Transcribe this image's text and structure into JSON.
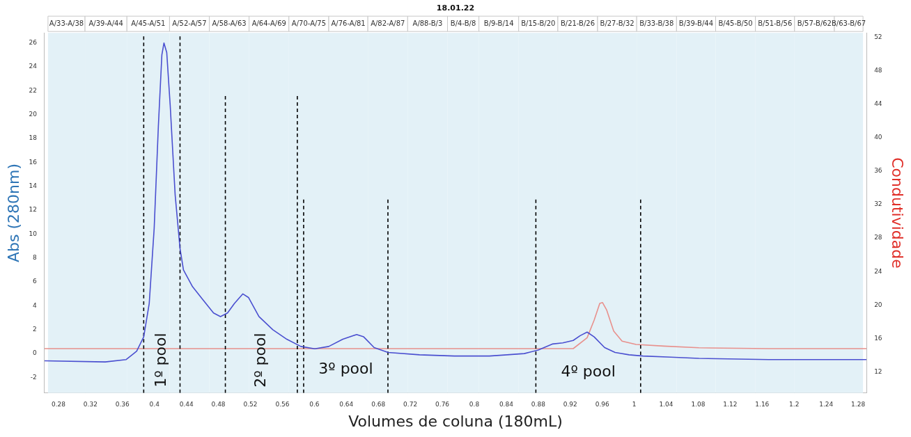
{
  "chart_data": {
    "type": "line",
    "title": "18.01.22",
    "xlabel": "Volumes de coluna (180mL)",
    "ylabel": "Abs (280nm)",
    "y2label": "Condutividade",
    "xlim": [
      0.2625,
      1.2905
    ],
    "xticks": [
      0.28,
      0.32,
      0.36,
      0.4,
      0.44,
      0.48,
      0.52,
      0.56,
      0.6,
      0.64,
      0.68,
      0.72,
      0.76,
      0.8,
      0.84,
      0.88,
      0.92,
      0.96,
      1,
      1.04,
      1.08,
      1.12,
      1.16,
      1.2,
      1.24,
      1.28
    ],
    "ylim": [
      -3.3,
      26.85
    ],
    "yticks": [
      -2,
      0,
      2,
      4,
      6,
      8,
      10,
      12,
      14,
      16,
      18,
      20,
      22,
      24,
      26
    ],
    "y2lim": [
      9.5,
      52.5
    ],
    "y2ticks": [
      12,
      16,
      20,
      24,
      28,
      32,
      36,
      40,
      44,
      48,
      52
    ],
    "grid": false,
    "legend": false,
    "marker": "none",
    "series": [
      {
        "color": "#e8908c",
        "axis": "y2",
        "x": [
          0.2625,
          0.8625,
          0.9237,
          0.9411,
          0.9499,
          0.9569,
          0.9604,
          0.9656,
          0.9743,
          0.9848,
          1.0023,
          1.0372,
          1.0809,
          1.1682,
          1.2905
        ],
        "values": [
          14.8,
          14.8,
          14.8,
          16.1,
          18.2,
          20.2,
          20.3,
          19.4,
          16.9,
          15.7,
          15.3,
          15.1,
          14.9,
          14.8,
          14.8
        ]
      },
      {
        "color": "#4a4fd0",
        "x": [
          0.2625,
          0.3385,
          0.3647,
          0.3778,
          0.3866,
          0.3935,
          0.3997,
          0.4049,
          0.4093,
          0.4119,
          0.4154,
          0.4197,
          0.4259,
          0.432,
          0.4363,
          0.4477,
          0.4608,
          0.4739,
          0.4826,
          0.4914,
          0.5001,
          0.5106,
          0.5176,
          0.5307,
          0.5481,
          0.5656,
          0.5831,
          0.6005,
          0.618,
          0.6355,
          0.6529,
          0.6617,
          0.6748,
          0.6922,
          0.7315,
          0.7752,
          0.8189,
          0.8625,
          0.88,
          0.8975,
          0.9106,
          0.9237,
          0.9324,
          0.9411,
          0.9499,
          0.963,
          0.9761,
          0.9935,
          1.011,
          1.0459,
          1.0809,
          1.1682,
          1.2555,
          1.2905
        ],
        "values": [
          -0.6,
          -0.7,
          -0.5,
          0.2,
          1.4,
          4.2,
          10.5,
          19,
          25,
          26,
          25.2,
          20.8,
          13.3,
          8.8,
          7,
          5.6,
          4.5,
          3.4,
          3.1,
          3.4,
          4.2,
          5,
          4.7,
          3.1,
          2,
          1.2,
          0.6,
          0.4,
          0.6,
          1.2,
          1.6,
          1.4,
          0.5,
          0.1,
          -0.1,
          -0.2,
          -0.2,
          0,
          0.3,
          0.8,
          0.9,
          1.1,
          1.5,
          1.8,
          1.4,
          0.5,
          0.1,
          -0.1,
          -0.2,
          -0.3,
          -0.4,
          -0.5,
          -0.5,
          -0.5
        ]
      },
      {
        "type": "line",
        "color": "#000000",
        "line_style": "dashed",
        "x": [
          0.3866,
          0.3866
        ],
        "values": [
          -3.3,
          26.56
        ]
      },
      {
        "type": "line",
        "color": "#000000",
        "line_style": "dashed",
        "x": [
          0.432,
          0.432
        ],
        "values": [
          -3.3,
          26.56
        ]
      },
      {
        "type": "line",
        "color": "#000000",
        "line_style": "dashed",
        "x": [
          0.4887,
          0.4887
        ],
        "values": [
          -3.3,
          21.56
        ]
      },
      {
        "type": "line",
        "color": "#000000",
        "line_style": "dashed",
        "x": [
          0.5787,
          0.5787
        ],
        "values": [
          -3.3,
          21.56
        ]
      },
      {
        "type": "line",
        "color": "#000000",
        "line_style": "dashed",
        "x": [
          0.5866,
          0.5866
        ],
        "values": [
          -3.3,
          12.9
        ]
      },
      {
        "type": "line",
        "color": "#000000",
        "line_style": "dashed",
        "x": [
          0.692,
          0.692
        ],
        "values": [
          -3.3,
          12.9
        ]
      },
      {
        "type": "line",
        "color": "#000000",
        "line_style": "dashed",
        "x": [
          0.877,
          0.877
        ],
        "values": [
          -3.3,
          12.9
        ]
      },
      {
        "type": "line",
        "color": "#000000",
        "line_style": "dashed",
        "x": [
          1.008,
          1.008
        ],
        "values": [
          -3.3,
          12.9
        ]
      }
    ],
    "bands": [
      {
        "axis": "x",
        "from": 0.2669,
        "to": 0.3132,
        "label": "A/33-A/38",
        "color": "#e3f1f7"
      },
      {
        "axis": "x",
        "from": 0.3132,
        "to": 0.3656,
        "label": "A/39-A/44",
        "color": "#e3f1f7"
      },
      {
        "axis": "x",
        "from": 0.3656,
        "to": 0.4189,
        "label": "A/45-A/51",
        "color": "#e3f1f7"
      },
      {
        "axis": "x",
        "from": 0.4189,
        "to": 0.4686,
        "label": "A/52-A/57",
        "color": "#e3f1f7"
      },
      {
        "axis": "x",
        "from": 0.4686,
        "to": 0.5184,
        "label": "A/58-A/63",
        "color": "#e3f1f7"
      },
      {
        "axis": "x",
        "from": 0.5184,
        "to": 0.5682,
        "label": "A/64-A/69",
        "color": "#e3f1f7"
      },
      {
        "axis": "x",
        "from": 0.5682,
        "to": 0.618,
        "label": "A/70-A/75",
        "color": "#e3f1f7"
      },
      {
        "axis": "x",
        "from": 0.618,
        "to": 0.6669,
        "label": "A/76-A/81",
        "color": "#e3f1f7"
      },
      {
        "axis": "x",
        "from": 0.6669,
        "to": 0.7167,
        "label": "A/82-A/87",
        "color": "#e3f1f7"
      },
      {
        "axis": "x",
        "from": 0.7167,
        "to": 0.7665,
        "label": "A/88-B/3",
        "color": "#e3f1f7"
      },
      {
        "axis": "x",
        "from": 0.7665,
        "to": 0.8058,
        "label": "B/4-B/8",
        "color": "#e3f1f7"
      },
      {
        "axis": "x",
        "from": 0.8058,
        "to": 0.8555,
        "label": "B/9-B/14",
        "color": "#e3f1f7"
      },
      {
        "axis": "x",
        "from": 0.8555,
        "to": 0.9045,
        "label": "B/15-B/20",
        "color": "#e3f1f7"
      },
      {
        "axis": "x",
        "from": 0.9045,
        "to": 0.9542,
        "label": "B/21-B/26",
        "color": "#e3f1f7"
      },
      {
        "axis": "x",
        "from": 0.9542,
        "to": 1.0031,
        "label": "B/27-B/32",
        "color": "#e3f1f7"
      },
      {
        "axis": "x",
        "from": 1.0031,
        "to": 1.0529,
        "label": "B/33-B/38",
        "color": "#e3f1f7"
      },
      {
        "axis": "x",
        "from": 1.0529,
        "to": 1.1018,
        "label": "B/39-B/44",
        "color": "#e3f1f7"
      },
      {
        "axis": "x",
        "from": 1.1018,
        "to": 1.1516,
        "label": "B/45-B/50",
        "color": "#e3f1f7"
      },
      {
        "axis": "x",
        "from": 1.1516,
        "to": 1.2005,
        "label": "B/51-B/56",
        "color": "#e3f1f7"
      },
      {
        "axis": "x",
        "from": 1.2005,
        "to": 1.2503,
        "label": "B/57-B/62",
        "color": "#e3f1f7"
      },
      {
        "axis": "x",
        "from": 1.2503,
        "to": 1.2861,
        "label": "B/63-B/67",
        "color": "#e3f1f7"
      }
    ],
    "annotations": [
      "1º pool",
      "2º pool",
      "3º pool",
      "4º pool"
    ]
  }
}
